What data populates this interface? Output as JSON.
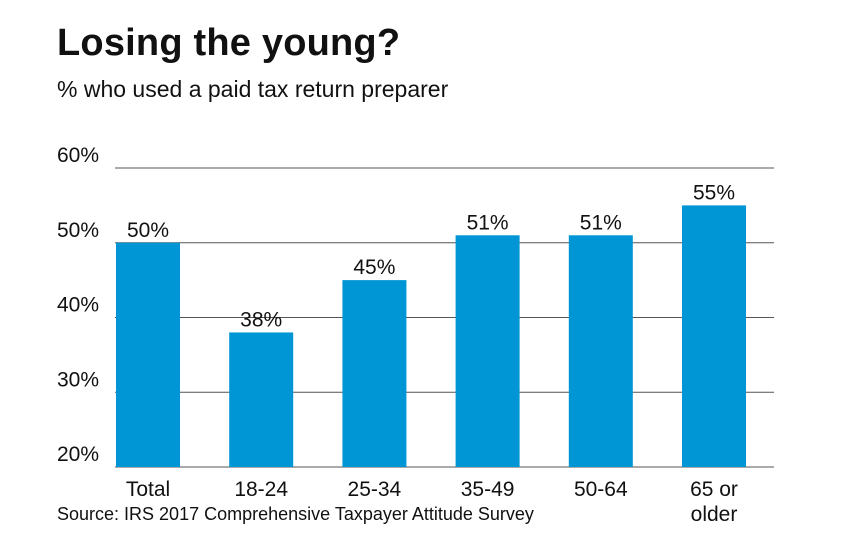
{
  "title": "Losing the young?",
  "subtitle": "% who used a paid tax return preparer",
  "source": "Source: IRS 2017 Comprehensive Taxpayer Attitude Survey",
  "colors": {
    "bar": "#0096d6",
    "gridline": "#555555",
    "text": "#111111"
  },
  "chart_data": {
    "type": "bar",
    "title": "Losing the young?",
    "subtitle": "% who used a paid tax return preparer",
    "xlabel": "",
    "ylabel": "",
    "ylim": [
      20,
      60
    ],
    "yticks": [
      20,
      30,
      40,
      50,
      60
    ],
    "ytick_labels": [
      "20%",
      "30%",
      "40%",
      "50%",
      "60%"
    ],
    "grid": true,
    "categories": [
      "Total",
      "18-24",
      "25-34",
      "35-49",
      "50-64",
      "65 or older"
    ],
    "category_lines": [
      [
        "Total"
      ],
      [
        "18-24"
      ],
      [
        "25-34"
      ],
      [
        "35-49"
      ],
      [
        "50-64"
      ],
      [
        "65 or",
        "older"
      ]
    ],
    "values": [
      50,
      38,
      45,
      51,
      51,
      55
    ],
    "value_labels": [
      "50%",
      "38%",
      "45%",
      "51%",
      "51%",
      "55%"
    ]
  }
}
